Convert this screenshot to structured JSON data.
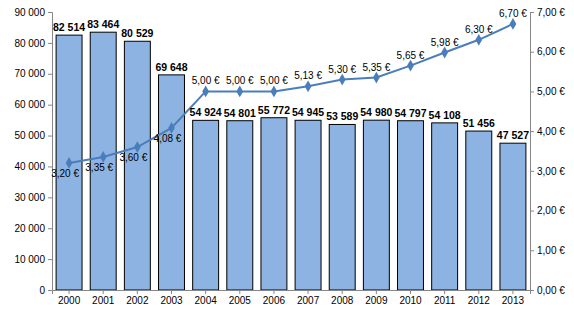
{
  "chart_data": {
    "type": "bar",
    "categories": [
      "2000",
      "2001",
      "2002",
      "2003",
      "2004",
      "2005",
      "2006",
      "2007",
      "2008",
      "2009",
      "2010",
      "2011",
      "2012",
      "2013"
    ],
    "series": [
      {
        "type": "bar",
        "color": "#8db3e2",
        "data_labels": true,
        "values": [
          82514,
          83464,
          80529,
          69648,
          54924,
          54801,
          55772,
          54945,
          53589,
          54980,
          54797,
          54108,
          51456,
          47527
        ],
        "value_labels": [
          "82 514",
          "83 464",
          "80 529",
          "69 648",
          "54 924",
          "54 801",
          "55 772",
          "54 945",
          "53 589",
          "54 980",
          "54 797",
          "54 108",
          "51 456",
          "47 527"
        ]
      },
      {
        "type": "line",
        "axis": "y2",
        "color": "#4a7ebb",
        "marker": "diamond",
        "data_labels": true,
        "values": [
          3.2,
          3.35,
          3.6,
          4.08,
          5.0,
          5.0,
          5.0,
          5.13,
          5.3,
          5.35,
          5.65,
          5.98,
          6.3,
          6.7
        ],
        "value_labels": [
          "3,20 €",
          "3,35 €",
          "3,60 €",
          "4,08 €",
          "5,00 €",
          "5,00 €",
          "5,00 €",
          "5,13 €",
          "5,30 €",
          "5,35 €",
          "5,65 €",
          "5,98 €",
          "6,30 €",
          "6,70 €"
        ]
      }
    ],
    "ylim": [
      0,
      90000
    ],
    "yticks": [
      0,
      {
        "value": 10000,
        "label": "10 000"
      },
      {
        "value": 20000,
        "label": "20 000"
      },
      {
        "value": 30000,
        "label": "30 000"
      },
      {
        "value": 40000,
        "label": "40 000"
      },
      {
        "value": 50000,
        "label": "50 000"
      },
      {
        "value": 60000,
        "label": "60 000"
      },
      {
        "value": 70000,
        "label": "70 000"
      },
      {
        "value": 80000,
        "label": "80 000"
      },
      {
        "value": 90000,
        "label": "90 000"
      }
    ],
    "y2lim": [
      0,
      7
    ],
    "y2ticks": [
      {
        "value": 0,
        "label": "0,00 €"
      },
      {
        "value": 1,
        "label": "1,00 €"
      },
      {
        "value": 2,
        "label": "2,00 €"
      },
      {
        "value": 3,
        "label": "3,00 €"
      },
      {
        "value": 4,
        "label": "4,00 €"
      },
      {
        "value": 5,
        "label": "5,00 €"
      },
      {
        "value": 6,
        "label": "6,00 €"
      },
      {
        "value": 7,
        "label": "7,00 €"
      }
    ],
    "grid": false
  }
}
